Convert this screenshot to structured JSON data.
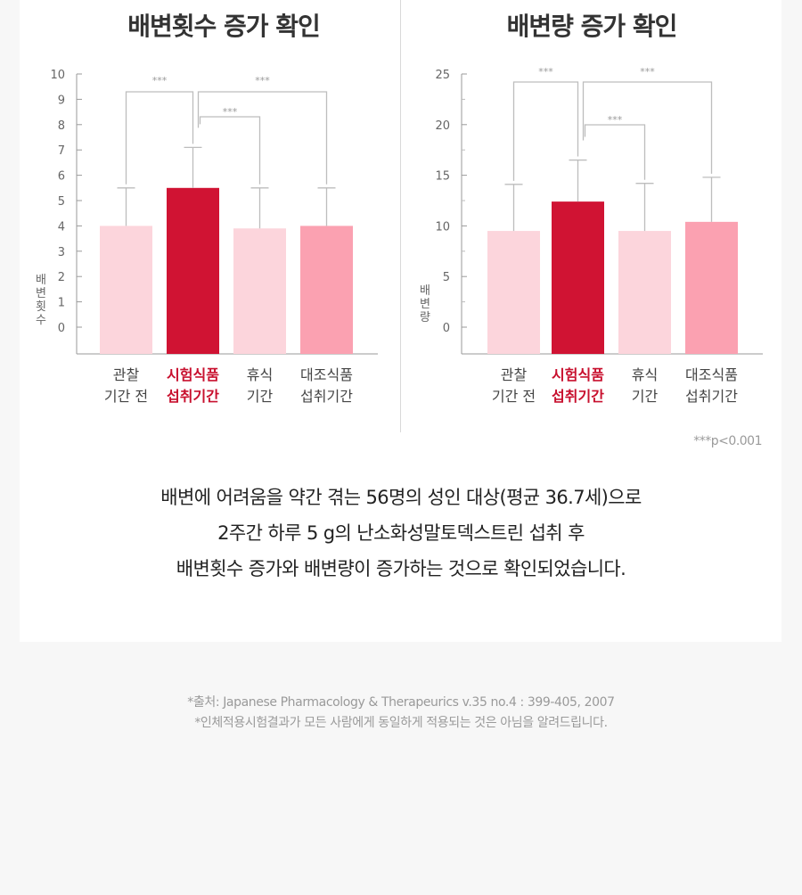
{
  "chart_data": [
    {
      "type": "bar",
      "title": "배변횟수 증가 확인",
      "ylabel": "배변횟수",
      "ylim": [
        0,
        10
      ],
      "yticks": [
        "0",
        "1",
        "2",
        "3",
        "4",
        "5",
        "6",
        "7",
        "8",
        "9",
        "10"
      ],
      "categories": [
        [
          "관찰",
          "기간 전"
        ],
        [
          "시험식품",
          "섭취기간"
        ],
        [
          "휴식",
          "기간"
        ],
        [
          "대조식품",
          "섭취기간"
        ]
      ],
      "values": [
        4.0,
        5.5,
        3.9,
        4.0
      ],
      "errors": [
        1.5,
        1.6,
        1.6,
        1.5
      ],
      "colors": [
        "#fcd5dc",
        "#d01333",
        "#fcd5dc",
        "#fba1b1"
      ],
      "highlight_index": 1,
      "highlight_color": "#c8102e",
      "significance": [
        {
          "from": 0,
          "to": 1,
          "label": "***"
        },
        {
          "from": 1,
          "to": 3,
          "label": "***"
        },
        {
          "from": 1,
          "to": 2,
          "label": "***"
        }
      ]
    },
    {
      "type": "bar",
      "title": "배변량 증가 확인",
      "ylabel": "배변량",
      "ylim": [
        0,
        25
      ],
      "yticks": [
        "0",
        "5",
        "10",
        "15",
        "20",
        "25"
      ],
      "categories": [
        [
          "관찰",
          "기간 전"
        ],
        [
          "시험식품",
          "섭취기간"
        ],
        [
          "휴식",
          "기간"
        ],
        [
          "대조식품",
          "섭취기간"
        ]
      ],
      "values": [
        9.5,
        12.4,
        9.5,
        10.4
      ],
      "errors": [
        4.6,
        4.1,
        4.7,
        4.4
      ],
      "colors": [
        "#fcd5dc",
        "#d01333",
        "#fcd5dc",
        "#fba1b1"
      ],
      "highlight_index": 1,
      "highlight_color": "#c8102e",
      "significance": [
        {
          "from": 0,
          "to": 1,
          "label": "***"
        },
        {
          "from": 1,
          "to": 3,
          "label": "***"
        },
        {
          "from": 1,
          "to": 2,
          "label": "***"
        }
      ]
    }
  ],
  "pvalue_note": "***p<0.001",
  "description": {
    "line1": "배변에 어려움을 약간 겪는 56명의 성인 대상(평균 36.7세)으로",
    "line2": "2주간 하루 5 g의 난소화성말토덱스트린 섭취 후",
    "line3": "배변횟수 증가와 배변량이 증가하는 것으로 확인되었습니다."
  },
  "footnotes": {
    "source": "*출처: Japanese Pharmacology & Therapeurics v.35 no.4 : 399-405, 2007",
    "disclaimer": "*인체적용시험결과가 모든 사람에게 동일하게 적용되는 것은 아님을 알려드립니다."
  }
}
